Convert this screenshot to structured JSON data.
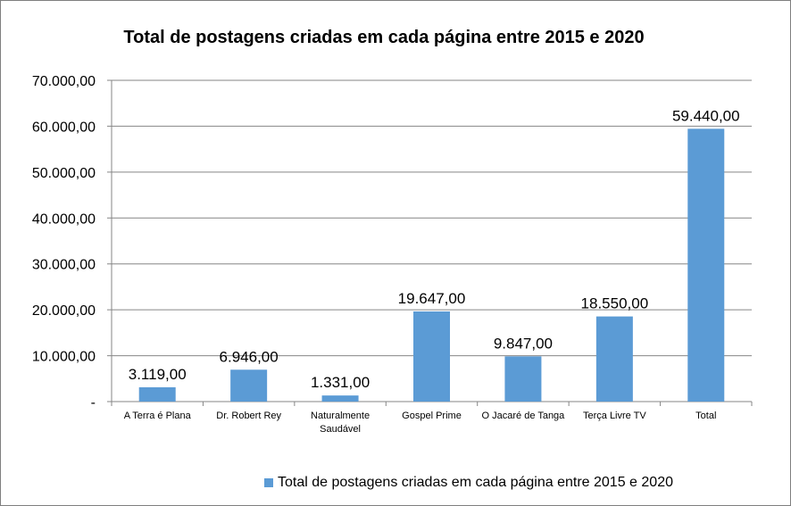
{
  "chart_data": {
    "type": "bar",
    "title": "Total de postagens criadas em cada página entre 2015 e 2020",
    "categories": [
      "A Terra é Plana",
      "Dr. Robert Rey",
      "Naturalmente Saudável",
      "Gospel Prime",
      "O Jacaré de Tanga",
      "Terça Livre TV",
      "Total"
    ],
    "category_lines": [
      [
        "A Terra é Plana"
      ],
      [
        "Dr. Robert Rey"
      ],
      [
        "Naturalmente",
        "Saudável"
      ],
      [
        "Gospel Prime"
      ],
      [
        "O Jacaré de Tanga"
      ],
      [
        "Terça Livre TV"
      ],
      [
        "Total"
      ]
    ],
    "series": [
      {
        "name": "Total de postagens criadas em cada página entre 2015 e 2020",
        "values": [
          3119,
          6946,
          1331,
          19647,
          9847,
          18550,
          59440
        ],
        "labels": [
          "3.119,00",
          "6.946,00",
          "1.331,00",
          "19.647,00",
          "9.847,00",
          "18.550,00",
          "59.440,00"
        ],
        "color": "#5b9bd5"
      }
    ],
    "ylim": [
      0,
      70000
    ],
    "yticks": [
      0,
      10000,
      20000,
      30000,
      40000,
      50000,
      60000,
      70000
    ],
    "ytick_labels": [
      "-",
      "10.000,00",
      "20.000,00",
      "30.000,00",
      "40.000,00",
      "50.000,00",
      "60.000,00",
      "70.000,00"
    ],
    "grid": true,
    "legend_position": "bottom",
    "xlabel": "",
    "ylabel": ""
  }
}
